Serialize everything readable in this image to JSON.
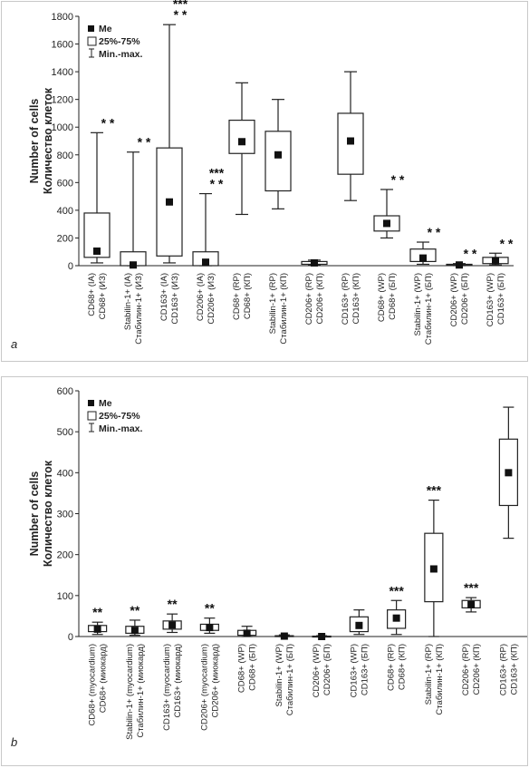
{
  "chart_data": [
    {
      "panel": "a",
      "type": "box",
      "ylabel": [
        "Number of cells",
        "Количество клеток"
      ],
      "ylim": [
        0,
        1800
      ],
      "yticks": [
        0,
        200,
        400,
        600,
        800,
        1000,
        1200,
        1400,
        1600,
        1800
      ],
      "legend": {
        "median": "Me",
        "box": "25%-75%",
        "whisker": "Min.-max.",
        "placement": "top-left"
      },
      "categories": [
        {
          "l1": "CD68+ (IA)",
          "l2": "CD68+ (ИЗ)",
          "min": 20,
          "q1": 60,
          "median": 105,
          "q3": 380,
          "max": 960,
          "sig": [
            "* *"
          ]
        },
        {
          "l1": "Stabilin-1+ (IA)",
          "l2": "Стабилин-1+ (ИЗ)",
          "min": 0,
          "q1": 0,
          "median": 5,
          "q3": 100,
          "max": 820,
          "sig": [
            "* *"
          ]
        },
        {
          "l1": "CD163+ (IA)",
          "l2": "CD163+ (ИЗ)",
          "min": 20,
          "q1": 70,
          "median": 460,
          "q3": 850,
          "max": 1740,
          "sig": [
            "***",
            "* *"
          ]
        },
        {
          "l1": "CD206+ (IA)",
          "l2": "CD206+ (ИЗ)",
          "min": 0,
          "q1": 0,
          "median": 25,
          "q3": 100,
          "max": 520,
          "sig": [
            "***",
            "* *"
          ]
        },
        {
          "l1": "CD68+ (RP)",
          "l2": "CD68+ (КП)",
          "min": 370,
          "q1": 810,
          "median": 895,
          "q3": 1050,
          "max": 1320,
          "sig": []
        },
        {
          "l1": "Stabilin-1+ (RP)",
          "l2": "Стабилин-1+ (КП)",
          "min": 410,
          "q1": 540,
          "median": 800,
          "q3": 970,
          "max": 1200,
          "sig": []
        },
        {
          "l1": "CD206+ (RP)",
          "l2": "CD206+ (КП)",
          "min": 5,
          "q1": 10,
          "median": 20,
          "q3": 30,
          "max": 40,
          "sig": []
        },
        {
          "l1": "CD163+ (RP)",
          "l2": "CD163+ (КП)",
          "min": 470,
          "q1": 660,
          "median": 900,
          "q3": 1100,
          "max": 1400,
          "sig": []
        },
        {
          "l1": "CD68+ (WP)",
          "l2": "CD68+ (БП)",
          "min": 200,
          "q1": 250,
          "median": 305,
          "q3": 360,
          "max": 550,
          "sig": [
            "* *"
          ]
        },
        {
          "l1": "Stabilin-1+ (WP)",
          "l2": "Стабилин-1+ (БП)",
          "min": 10,
          "q1": 30,
          "median": 55,
          "q3": 120,
          "max": 170,
          "sig": [
            "* *"
          ]
        },
        {
          "l1": "CD206+ (WP)",
          "l2": "CD206+ (БП)",
          "min": 0,
          "q1": 2,
          "median": 5,
          "q3": 10,
          "max": 15,
          "sig": [
            "* *"
          ]
        },
        {
          "l1": "CD163+ (WP)",
          "l2": "CD163+ (БП)",
          "min": 5,
          "q1": 15,
          "median": 35,
          "q3": 60,
          "max": 90,
          "sig": [
            "* *"
          ]
        }
      ]
    },
    {
      "panel": "b",
      "type": "box",
      "ylabel": [
        "Number of cells",
        "Количество клеток"
      ],
      "ylim": [
        0,
        600
      ],
      "yticks": [
        0,
        100,
        200,
        300,
        400,
        500,
        600
      ],
      "legend": {
        "median": "Me",
        "box": "25%-75%",
        "whisker": "Min.-max.",
        "placement": "top-left"
      },
      "categories": [
        {
          "l1": "CD68+ (myocardium)",
          "l2": "CD68+ (миокард)",
          "min": 5,
          "q1": 12,
          "median": 18,
          "q3": 27,
          "max": 35,
          "sig": [
            "**"
          ]
        },
        {
          "l1": "Stabilin-1+ (myocardium)",
          "l2": "Стабилин-1+ (миокард)",
          "min": 3,
          "q1": 8,
          "median": 15,
          "q3": 25,
          "max": 40,
          "sig": [
            "**"
          ]
        },
        {
          "l1": "CD163+ (myocardium)",
          "l2": "CD163+ (миокард)",
          "min": 10,
          "q1": 18,
          "median": 28,
          "q3": 38,
          "max": 55,
          "sig": [
            "**"
          ]
        },
        {
          "l1": "CD206+ (myocardium)",
          "l2": "CD206+ (миокард)",
          "min": 8,
          "q1": 15,
          "median": 22,
          "q3": 30,
          "max": 45,
          "sig": [
            "**"
          ]
        },
        {
          "l1": "CD68+ (WP)",
          "l2": "CD68+ (БП)",
          "min": 0,
          "q1": 3,
          "median": 8,
          "q3": 15,
          "max": 25,
          "sig": []
        },
        {
          "l1": "Stabilin-1+ (WP)",
          "l2": "Стабилин-1+ (БП)",
          "min": 0,
          "q1": 0,
          "median": 1,
          "q3": 2,
          "max": 4,
          "sig": []
        },
        {
          "l1": "CD206+ (WP)",
          "l2": "CD206+ (БП)",
          "min": 0,
          "q1": 0,
          "median": 0,
          "q3": 1,
          "max": 2,
          "sig": []
        },
        {
          "l1": "CD163+ (WP)",
          "l2": "CD163+ (БП)",
          "min": 5,
          "q1": 12,
          "median": 27,
          "q3": 48,
          "max": 65,
          "sig": []
        },
        {
          "l1": "CD68+ (RP)",
          "l2": "CD68+ (КП)",
          "min": 5,
          "q1": 20,
          "median": 45,
          "q3": 65,
          "max": 88,
          "sig": [
            "***"
          ]
        },
        {
          "l1": "Stabilin-1+ (RP)",
          "l2": "Стабилин-1+ (КП)",
          "min": 0,
          "q1": 85,
          "median": 165,
          "q3": 252,
          "max": 333,
          "sig": [
            "***"
          ]
        },
        {
          "l1": "CD206+ (RP)",
          "l2": "CD206+ (КП)",
          "min": 60,
          "q1": 70,
          "median": 78,
          "q3": 88,
          "max": 95,
          "sig": [
            "***"
          ]
        },
        {
          "l1": "CD163+ (RP)",
          "l2": "CD163+ (КП)",
          "min": 240,
          "q1": 320,
          "median": 400,
          "q3": 482,
          "max": 560,
          "sig": []
        }
      ]
    }
  ],
  "panel_letters": [
    "a",
    "b"
  ]
}
